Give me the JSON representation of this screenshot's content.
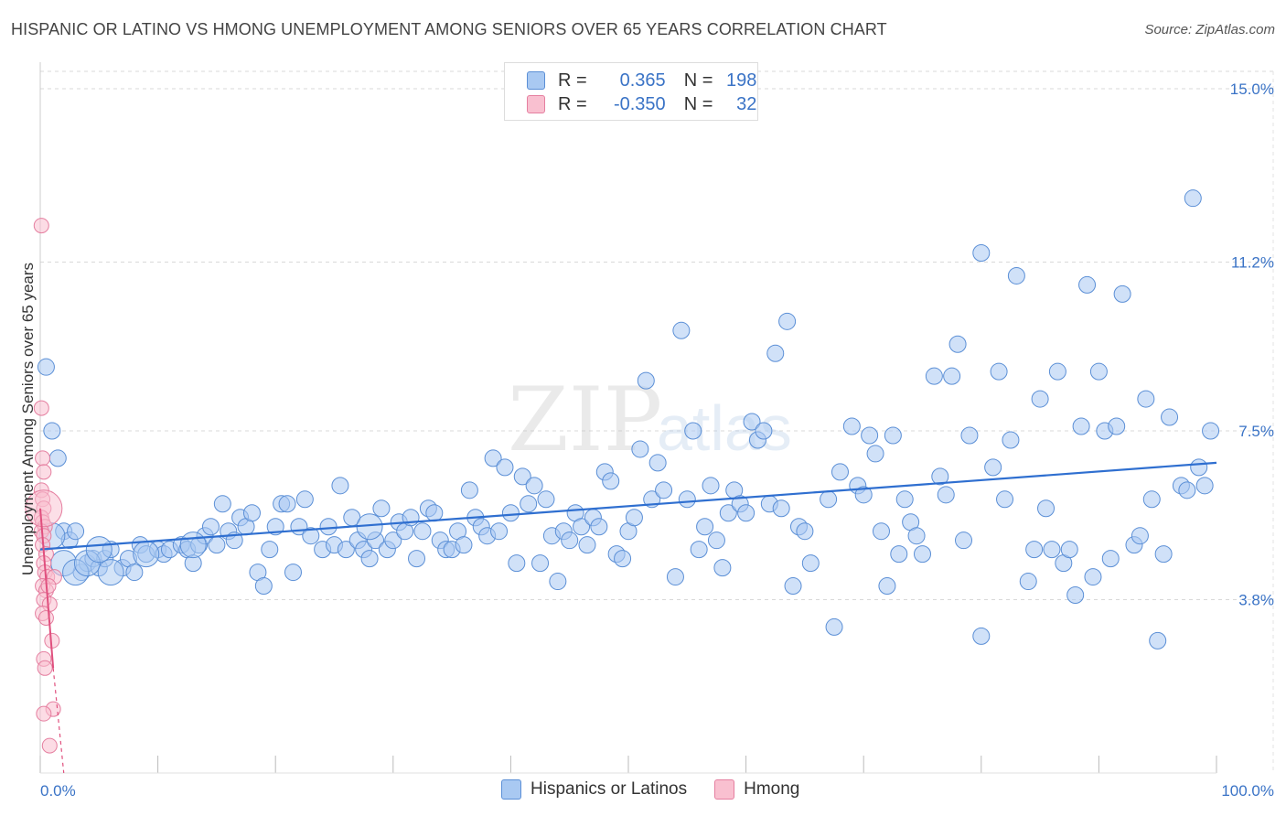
{
  "title": "HISPANIC OR LATINO VS HMONG UNEMPLOYMENT AMONG SENIORS OVER 65 YEARS CORRELATION CHART",
  "source": "Source: ZipAtlas.com",
  "watermark": {
    "zip": "ZIP",
    "atlas": "atlas"
  },
  "legend": {
    "rows": [
      {
        "r_label": "R =",
        "r_value": "0.365",
        "n_label": "N =",
        "n_value": "198",
        "color": "#a9c9f2",
        "border": "#5b8fd6"
      },
      {
        "r_label": "R =",
        "r_value": "-0.350",
        "n_label": "N =",
        "n_value": "32",
        "color": "#f9c0d0",
        "border": "#e57fa0"
      }
    ]
  },
  "bottom_legend": [
    "Hispanics or Latinos",
    "Hmong"
  ],
  "chart_data": {
    "type": "scatter",
    "title": "HISPANIC OR LATINO VS HMONG UNEMPLOYMENT AMONG SENIORS OVER 65 YEARS CORRELATION CHART",
    "xlabel": "",
    "ylabel": "Unemployment Among Seniors over 65 years",
    "xlim": [
      0,
      100
    ],
    "ylim": [
      0,
      15.5
    ],
    "x_tick_labels": [
      "0.0%",
      "100.0%"
    ],
    "y_tick_labels": [
      "3.8%",
      "7.5%",
      "11.2%",
      "15.0%"
    ],
    "y_ticks": [
      3.8,
      7.5,
      11.2,
      15.0
    ],
    "grid": true,
    "legend_position": "top-center",
    "series": [
      {
        "name": "Hispanics or Latinos",
        "color": "#a9c9f2",
        "stroke": "#5b8fd6",
        "trend": {
          "x": [
            0,
            100
          ],
          "y": [
            4.9,
            6.8
          ],
          "color": "#2f6fd0"
        },
        "points": [
          [
            0.5,
            8.9
          ],
          [
            1,
            7.5
          ],
          [
            1.5,
            6.9
          ],
          [
            2,
            5.3
          ],
          [
            2.5,
            5.1
          ],
          [
            3,
            5.3
          ],
          [
            3.5,
            4.4
          ],
          [
            4,
            4.6
          ],
          [
            4.5,
            4.7
          ],
          [
            5,
            4.5
          ],
          [
            5.5,
            4.7
          ],
          [
            6,
            4.9
          ],
          [
            7,
            4.5
          ],
          [
            7.5,
            4.7
          ],
          [
            8,
            4.4
          ],
          [
            8.5,
            5.0
          ],
          [
            9,
            4.8
          ],
          [
            10,
            4.9
          ],
          [
            10.5,
            4.8
          ],
          [
            11,
            4.9
          ],
          [
            12,
            5.0
          ],
          [
            12.5,
            4.9
          ],
          [
            13,
            4.6
          ],
          [
            13.5,
            5.0
          ],
          [
            14,
            5.2
          ],
          [
            14.5,
            5.4
          ],
          [
            15,
            5.0
          ],
          [
            15.5,
            5.9
          ],
          [
            16,
            5.3
          ],
          [
            16.5,
            5.1
          ],
          [
            17,
            5.6
          ],
          [
            17.5,
            5.4
          ],
          [
            18,
            5.7
          ],
          [
            18.5,
            4.4
          ],
          [
            19,
            4.1
          ],
          [
            19.5,
            4.9
          ],
          [
            20,
            5.4
          ],
          [
            20.5,
            5.9
          ],
          [
            21,
            5.9
          ],
          [
            21.5,
            4.4
          ],
          [
            22,
            5.4
          ],
          [
            22.5,
            6.0
          ],
          [
            23,
            5.2
          ],
          [
            24,
            4.9
          ],
          [
            24.5,
            5.4
          ],
          [
            25,
            5.0
          ],
          [
            25.5,
            6.3
          ],
          [
            26,
            4.9
          ],
          [
            26.5,
            5.6
          ],
          [
            27,
            5.1
          ],
          [
            27.5,
            4.9
          ],
          [
            28,
            4.7
          ],
          [
            28.5,
            5.1
          ],
          [
            29,
            5.8
          ],
          [
            29.5,
            4.9
          ],
          [
            30,
            5.1
          ],
          [
            30.5,
            5.5
          ],
          [
            31,
            5.3
          ],
          [
            31.5,
            5.6
          ],
          [
            32,
            4.7
          ],
          [
            32.5,
            5.3
          ],
          [
            33,
            5.8
          ],
          [
            33.5,
            5.7
          ],
          [
            34,
            5.1
          ],
          [
            34.5,
            4.9
          ],
          [
            35,
            4.9
          ],
          [
            35.5,
            5.3
          ],
          [
            36,
            5.0
          ],
          [
            36.5,
            6.2
          ],
          [
            37,
            5.6
          ],
          [
            37.5,
            5.4
          ],
          [
            38,
            5.2
          ],
          [
            38.5,
            6.9
          ],
          [
            39,
            5.3
          ],
          [
            39.5,
            6.7
          ],
          [
            40,
            5.7
          ],
          [
            40.5,
            4.6
          ],
          [
            41,
            6.5
          ],
          [
            41.5,
            5.9
          ],
          [
            42,
            6.3
          ],
          [
            42.5,
            4.6
          ],
          [
            43,
            6.0
          ],
          [
            43.5,
            5.2
          ],
          [
            44,
            4.2
          ],
          [
            44.5,
            5.3
          ],
          [
            45,
            5.1
          ],
          [
            45.5,
            5.7
          ],
          [
            46,
            5.4
          ],
          [
            46.5,
            5.0
          ],
          [
            47,
            5.6
          ],
          [
            47.5,
            5.4
          ],
          [
            48,
            6.6
          ],
          [
            48.5,
            6.4
          ],
          [
            49,
            4.8
          ],
          [
            49.5,
            4.7
          ],
          [
            50,
            5.3
          ],
          [
            50.5,
            5.6
          ],
          [
            51,
            7.1
          ],
          [
            51.5,
            8.6
          ],
          [
            52,
            6.0
          ],
          [
            52.5,
            6.8
          ],
          [
            53,
            6.2
          ],
          [
            54,
            4.3
          ],
          [
            54.5,
            9.7
          ],
          [
            55,
            6.0
          ],
          [
            55.5,
            7.5
          ],
          [
            56,
            4.9
          ],
          [
            56.5,
            5.4
          ],
          [
            57,
            6.3
          ],
          [
            57.5,
            5.1
          ],
          [
            58,
            4.5
          ],
          [
            58.5,
            5.7
          ],
          [
            59,
            6.2
          ],
          [
            59.5,
            5.9
          ],
          [
            60,
            5.7
          ],
          [
            60.5,
            7.7
          ],
          [
            61,
            7.3
          ],
          [
            61.5,
            7.5
          ],
          [
            62,
            5.9
          ],
          [
            62.5,
            9.2
          ],
          [
            63,
            5.8
          ],
          [
            63.5,
            9.9
          ],
          [
            64,
            4.1
          ],
          [
            64.5,
            5.4
          ],
          [
            65,
            5.3
          ],
          [
            65.5,
            4.6
          ],
          [
            67,
            6.0
          ],
          [
            67.5,
            3.2
          ],
          [
            68,
            6.6
          ],
          [
            69,
            7.6
          ],
          [
            69.5,
            6.3
          ],
          [
            70,
            6.1
          ],
          [
            70.5,
            7.4
          ],
          [
            71,
            7.0
          ],
          [
            71.5,
            5.3
          ],
          [
            72,
            4.1
          ],
          [
            72.5,
            7.4
          ],
          [
            73,
            4.8
          ],
          [
            73.5,
            6.0
          ],
          [
            74,
            5.5
          ],
          [
            74.5,
            5.2
          ],
          [
            75,
            4.8
          ],
          [
            76,
            8.7
          ],
          [
            76.5,
            6.5
          ],
          [
            77,
            6.1
          ],
          [
            77.5,
            8.7
          ],
          [
            78,
            9.4
          ],
          [
            78.5,
            5.1
          ],
          [
            79,
            7.4
          ],
          [
            80,
            3.0
          ],
          [
            80,
            11.4
          ],
          [
            81,
            6.7
          ],
          [
            81.5,
            8.8
          ],
          [
            82,
            6.0
          ],
          [
            82.5,
            7.3
          ],
          [
            83,
            10.9
          ],
          [
            84,
            4.2
          ],
          [
            84.5,
            4.9
          ],
          [
            85,
            8.2
          ],
          [
            85.5,
            5.8
          ],
          [
            86,
            4.9
          ],
          [
            86.5,
            8.8
          ],
          [
            87,
            4.6
          ],
          [
            87.5,
            4.9
          ],
          [
            88,
            3.9
          ],
          [
            88.5,
            7.6
          ],
          [
            89,
            10.7
          ],
          [
            89.5,
            4.3
          ],
          [
            90,
            8.8
          ],
          [
            90.5,
            7.5
          ],
          [
            91,
            4.7
          ],
          [
            91.5,
            7.6
          ],
          [
            92,
            10.5
          ],
          [
            93,
            5.0
          ],
          [
            93.5,
            5.2
          ],
          [
            94,
            8.2
          ],
          [
            94.5,
            6.0
          ],
          [
            95,
            2.9
          ],
          [
            95.5,
            4.8
          ],
          [
            96,
            7.8
          ],
          [
            97,
            6.3
          ],
          [
            97.5,
            6.2
          ],
          [
            98,
            12.6
          ],
          [
            98.5,
            6.7
          ],
          [
            99,
            6.3
          ],
          [
            99.5,
            7.5
          ]
        ],
        "big_points": [
          [
            1,
            5.2
          ],
          [
            2,
            4.6
          ],
          [
            3,
            4.4
          ],
          [
            4,
            4.6
          ],
          [
            5,
            4.9
          ],
          [
            6,
            4.4
          ],
          [
            9,
            4.8
          ],
          [
            13,
            5.0
          ],
          [
            28,
            5.4
          ]
        ]
      },
      {
        "name": "Hmong",
        "color": "#f9c0d0",
        "stroke": "#e57fa0",
        "trend": {
          "x": [
            0,
            1.1
          ],
          "y": [
            5.8,
            2.3
          ],
          "dash_to": [
            2.0,
            -0.5
          ],
          "color": "#e0507e"
        },
        "points": [
          [
            0.1,
            12.0
          ],
          [
            0.1,
            8.0
          ],
          [
            0.2,
            6.9
          ],
          [
            0.3,
            6.6
          ],
          [
            0.1,
            6.2
          ],
          [
            0.2,
            6.0
          ],
          [
            0.3,
            5.8
          ],
          [
            0.1,
            5.6
          ],
          [
            0.2,
            5.5
          ],
          [
            0.4,
            5.4
          ],
          [
            0.1,
            5.3
          ],
          [
            0.3,
            5.2
          ],
          [
            0.2,
            5.0
          ],
          [
            0.5,
            4.8
          ],
          [
            0.3,
            4.6
          ],
          [
            0.4,
            4.4
          ],
          [
            0.6,
            4.3
          ],
          [
            1.2,
            4.3
          ],
          [
            0.2,
            4.1
          ],
          [
            0.5,
            4.0
          ],
          [
            0.7,
            4.1
          ],
          [
            0.3,
            3.8
          ],
          [
            0.8,
            3.7
          ],
          [
            0.2,
            3.5
          ],
          [
            0.5,
            3.4
          ],
          [
            1.0,
            2.9
          ],
          [
            0.3,
            2.5
          ],
          [
            0.4,
            2.3
          ],
          [
            1.1,
            1.4
          ],
          [
            0.3,
            1.3
          ],
          [
            0.8,
            0.6
          ]
        ],
        "big_points": [
          [
            0.3,
            5.8
          ]
        ]
      }
    ]
  }
}
